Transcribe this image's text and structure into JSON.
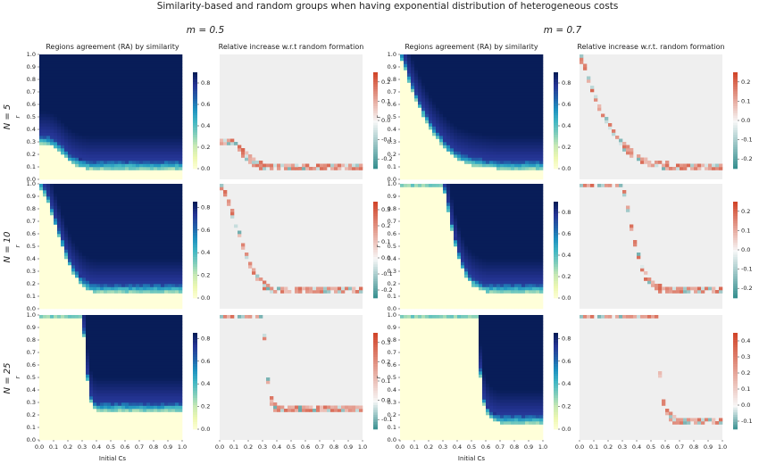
{
  "figure": {
    "title": "Similarity-based and random groups when having exponential distribution of heterogeneous costs",
    "columns": [
      {
        "label": "m = 0.5",
        "panels": [
          "Regions agreement (RA) by similarity",
          "Relative increase w.r.t random formation"
        ]
      },
      {
        "label": "m = 0.7",
        "panels": [
          "Regions agreement (RA) by similarity",
          "Relative increase w.r.t. random formation"
        ]
      }
    ],
    "rows": [
      "N = 5",
      "N = 10",
      "N = 25"
    ],
    "xlabel": "Initial Cs",
    "ylabel": "r"
  },
  "chart_data": {
    "type": "heatmap",
    "x_ticks": [
      "0.0",
      "0.1",
      "0.2",
      "0.3",
      "0.4",
      "0.5",
      "0.6",
      "0.7",
      "0.8",
      "0.9",
      "1.0"
    ],
    "y_ticks": [
      "0.0",
      "0.1",
      "0.2",
      "0.3",
      "0.4",
      "0.5",
      "0.6",
      "0.7",
      "0.8",
      "0.9",
      "1.0"
    ],
    "colors": {
      "ra_scale": [
        "#ffffd9",
        "#edf8b1",
        "#c7e9b4",
        "#7fcdbb",
        "#41b6c4",
        "#1d91c0",
        "#225ea8",
        "#253494",
        "#081d58"
      ],
      "diverging_negative": "#2e8b8b",
      "diverging_positive": "#d1452a",
      "missing": "#efefef"
    },
    "colorbars": {
      "ra": [
        [
          "0.0",
          "0.2",
          "0.4",
          "0.6",
          "0.8"
        ],
        [
          "0.0",
          "0.2",
          "0.4",
          "0.6",
          "0.8"
        ],
        [
          "0.0",
          "0.2",
          "0.4",
          "0.6",
          "0.8"
        ],
        [
          "0.0",
          "0.2",
          "0.4",
          "0.6",
          "0.8"
        ],
        [
          "0.0",
          "0.2",
          "0.4",
          "0.6",
          "0.8"
        ],
        [
          "0.0",
          "0.2",
          "0.4",
          "0.6",
          "0.8"
        ]
      ],
      "relative": [
        [
          "0.2",
          "0.1",
          "0.0",
          "-0.1",
          "-0.2"
        ],
        [
          "0.2",
          "0.1",
          "0.0",
          "-0.1",
          "-0.2"
        ],
        [
          "0.3",
          "0.2",
          "0.1",
          "0.0",
          "-0.1",
          "-0.2"
        ],
        [
          "0.2",
          "0.1",
          "0.0",
          "-0.1",
          "-0.2"
        ],
        [
          "0.3",
          "0.2",
          "0.1",
          "0.0",
          "-0.1"
        ],
        [
          "0.4",
          "0.3",
          "0.2",
          "0.1",
          "0.0",
          "-0.1"
        ]
      ]
    },
    "ra_vmax": [
      0.9,
      0.9,
      0.85,
      0.9,
      0.85,
      0.85
    ],
    "rel_vrange": [
      [
        -0.25,
        0.25
      ],
      [
        -0.25,
        0.25
      ],
      [
        -0.25,
        0.35
      ],
      [
        -0.25,
        0.25
      ],
      [
        -0.15,
        0.35
      ],
      [
        -0.15,
        0.45
      ]
    ],
    "threshold_curves": [
      {
        "N": 5,
        "m": 0.5,
        "cs": [
          0.0,
          0.05,
          0.1,
          0.15,
          0.2,
          0.25,
          0.3,
          0.35,
          0.5,
          0.7,
          1.0
        ],
        "r": [
          0.3,
          0.3,
          0.28,
          0.23,
          0.17,
          0.13,
          0.11,
          0.1,
          0.1,
          0.1,
          0.1
        ]
      },
      {
        "N": 5,
        "m": 0.7,
        "cs": [
          0.0,
          0.03,
          0.06,
          0.1,
          0.15,
          0.2,
          0.25,
          0.3,
          0.35,
          0.4,
          0.5,
          0.6,
          0.7,
          1.0
        ],
        "r": [
          1.0,
          0.92,
          0.8,
          0.68,
          0.55,
          0.44,
          0.35,
          0.28,
          0.22,
          0.17,
          0.13,
          0.11,
          0.1,
          0.1
        ]
      },
      {
        "N": 10,
        "m": 0.5,
        "cs": [
          0.0,
          0.05,
          0.1,
          0.15,
          0.2,
          0.25,
          0.3,
          0.35,
          0.4,
          0.5,
          1.0
        ],
        "r": [
          1.0,
          0.9,
          0.72,
          0.55,
          0.38,
          0.27,
          0.2,
          0.16,
          0.15,
          0.15,
          0.15
        ]
      },
      {
        "N": 10,
        "m": 0.7,
        "cs": [
          0.3,
          0.32,
          0.34,
          0.36,
          0.38,
          0.4,
          0.43,
          0.46,
          0.5,
          0.55,
          0.6,
          1.0
        ],
        "r": [
          1.0,
          0.9,
          0.78,
          0.66,
          0.55,
          0.45,
          0.35,
          0.27,
          0.21,
          0.17,
          0.15,
          0.15
        ]
      },
      {
        "N": 25,
        "m": 0.5,
        "cs": [
          0.3,
          0.31,
          0.32,
          0.33,
          0.34,
          0.35,
          0.36,
          0.38,
          0.4,
          0.45,
          1.0
        ],
        "r": [
          1.0,
          0.88,
          0.72,
          0.58,
          0.46,
          0.38,
          0.32,
          0.27,
          0.25,
          0.25,
          0.25
        ]
      },
      {
        "N": 25,
        "m": 0.7,
        "cs": [
          0.55,
          0.55,
          0.55,
          0.56,
          0.57,
          0.58,
          0.6,
          0.62,
          0.65,
          0.7,
          1.0
        ],
        "r": [
          1.0,
          0.85,
          0.7,
          0.55,
          0.42,
          0.32,
          0.25,
          0.2,
          0.17,
          0.15,
          0.15
        ]
      }
    ]
  }
}
